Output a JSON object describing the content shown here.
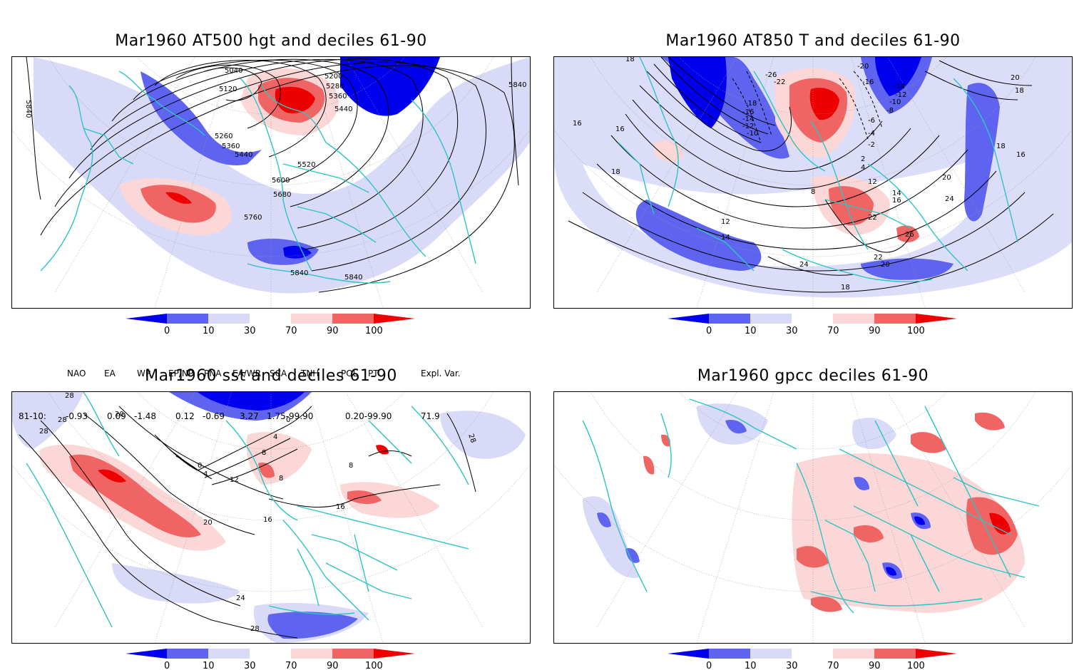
{
  "palette": {
    "deep_blue": "#0000ee",
    "mid_blue": "#5e64f0",
    "light_blue": "#d8daf8",
    "light_red": "#fbd7d7",
    "mid_red": "#f06464",
    "deep_red": "#ee0000",
    "coast": "#2ec4c4",
    "contour": "#000000",
    "grid": "#9a9a9a"
  },
  "panels": [
    {
      "id": "at500",
      "title": "Mar1960 AT500 hgt and deciles 61-90",
      "contour_labels": [
        "5040",
        "5120",
        "5200",
        "5280",
        "5360",
        "5440",
        "5260",
        "5360",
        "5440",
        "5520",
        "5600",
        "5680",
        "5760",
        "5840",
        "5840",
        "5840",
        "5840"
      ]
    },
    {
      "id": "at850",
      "title": "Mar1960 AT850 T and deciles 61-90",
      "contour_labels": [
        "18",
        "-20",
        "-26",
        "-22",
        "-16",
        "-14",
        "-12",
        "-10",
        "-8",
        "20",
        "18",
        "16",
        "16",
        "-18",
        "-16",
        "-14",
        "-12",
        "-10",
        "-6",
        "-4",
        "-2",
        "2",
        "4",
        "18",
        "16",
        "18",
        "20",
        "8",
        "12",
        "14",
        "16",
        "22",
        "24",
        "26",
        "22",
        "20",
        "24",
        "18",
        "12",
        "14"
      ]
    },
    {
      "id": "sst",
      "title": "Mar1960 sst and deciles 61-90",
      "contour_labels": [
        "28",
        "28",
        "28",
        "20",
        "0",
        "4",
        "8",
        "12",
        "4",
        "0",
        "8",
        "16",
        "16",
        "8",
        "20",
        "24",
        "28",
        "28"
      ]
    },
    {
      "id": "gpcc",
      "title": "Mar1960 gpcc deciles 61-90",
      "contour_labels": []
    }
  ],
  "colorbar": {
    "labels": [
      "0",
      "10",
      "30",
      "70",
      "90",
      "100"
    ]
  },
  "indices": {
    "headers": [
      "NAO",
      "EA",
      "WP",
      "EP/NP",
      "PNA",
      "EA/WR",
      "SCA",
      "TNH",
      "POL",
      "PT",
      "Expl. Var."
    ],
    "row_label": "81-10:",
    "values": [
      "-0.93",
      "0.09",
      "-1.48",
      "0.12",
      "-0.69",
      "3.27",
      "1.75-99.90",
      "0.20-99.90",
      "71.9"
    ]
  }
}
